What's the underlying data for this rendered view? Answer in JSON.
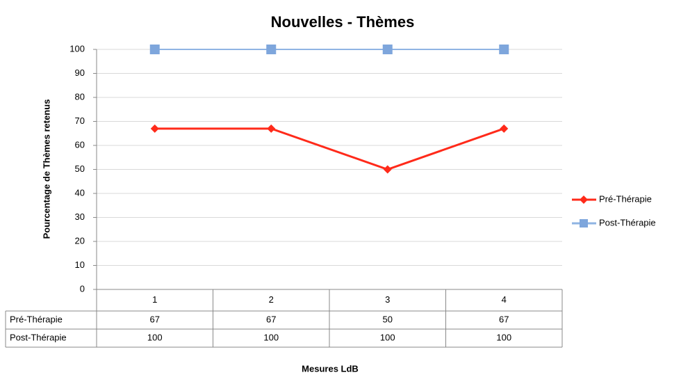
{
  "chart_data": {
    "type": "line",
    "title": "Nouvelles - Thèmes",
    "y_label": "Pourcentage de Thèmes retenus",
    "x_label": "Mesures LdB",
    "categories": [
      "1",
      "2",
      "3",
      "4"
    ],
    "series": [
      {
        "name": "Pré-Thérapie",
        "color": "#ff2a1a",
        "marker": "diamond",
        "values": [
          67,
          67,
          50,
          67
        ]
      },
      {
        "name": "Post-Thérapie",
        "color": "#8fb4e3",
        "marker": "square",
        "values": [
          100,
          100,
          100,
          100
        ]
      }
    ],
    "ylim": [
      0,
      100
    ],
    "yticks": [
      0,
      10,
      20,
      30,
      40,
      50,
      60,
      70,
      80,
      90,
      100
    ],
    "grid": true,
    "legend": "right",
    "data_table": true
  }
}
